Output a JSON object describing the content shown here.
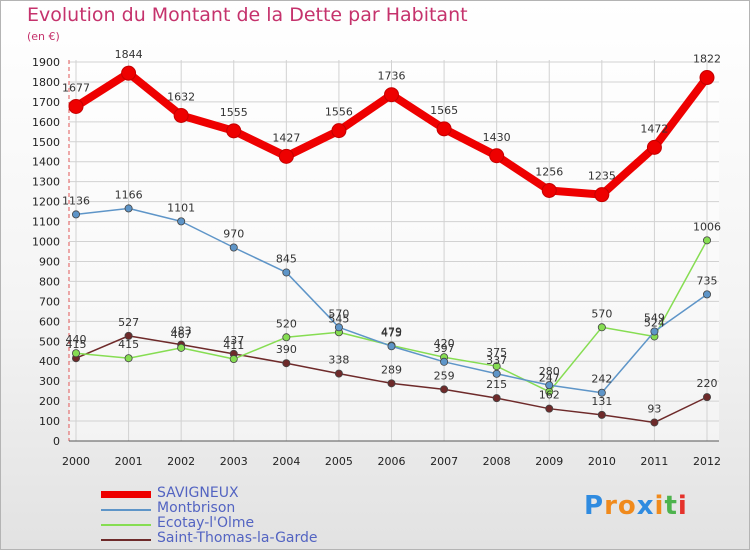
{
  "chart_data": {
    "type": "line",
    "title": "Evolution du Montant de la Dette par Habitant",
    "subtitle": "(en €)",
    "x": [
      "2000",
      "2001",
      "2002",
      "2003",
      "2004",
      "2005",
      "2006",
      "2007",
      "2008",
      "2009",
      "2010",
      "2011",
      "2012"
    ],
    "ylim": [
      0,
      1900
    ],
    "yticks": [
      0,
      100,
      200,
      300,
      400,
      500,
      600,
      700,
      800,
      900,
      1000,
      1100,
      1200,
      1300,
      1400,
      1500,
      1600,
      1700,
      1800,
      1900
    ],
    "grid": true,
    "legend_position": "bottom-left",
    "series": [
      {
        "name": "SAVIGNEUX",
        "color": "#ee0000",
        "values": [
          1677,
          1844,
          1632,
          1555,
          1427,
          1556,
          1736,
          1565,
          1430,
          1256,
          1235,
          1472,
          1822
        ],
        "labels": [
          "1677",
          "1844",
          "1632",
          "1555",
          "1427",
          "1556",
          "1736",
          "1565",
          "1430",
          "1256",
          "1235",
          "1472",
          "1822"
        ]
      },
      {
        "name": "Montbrison",
        "color": "#5e95c8",
        "values": [
          1136,
          1166,
          1101,
          970,
          845,
          570,
          475,
          397,
          337,
          280,
          242,
          549,
          735
        ],
        "labels": [
          "1136",
          "1166",
          "1101",
          "970",
          "845",
          "570",
          "475",
          "397",
          "337",
          "280",
          "242",
          "549",
          "735"
        ]
      },
      {
        "name": "Ecotay-l'Olme",
        "color": "#86dd52",
        "values": [
          440,
          415,
          467,
          411,
          520,
          545,
          479,
          420,
          375,
          247,
          570,
          524,
          1006
        ],
        "labels": [
          "440",
          "415",
          "467",
          "411",
          "520",
          "545",
          "479",
          "420",
          "375",
          "247",
          "570",
          "524",
          "1006"
        ]
      },
      {
        "name": "Saint-Thomas-la-Garde",
        "color": "#6e2a2a",
        "values": [
          415,
          527,
          483,
          437,
          390,
          338,
          289,
          259,
          215,
          162,
          131,
          93,
          220
        ],
        "labels": [
          "415",
          "527",
          "483",
          "437",
          "390",
          "338",
          "289",
          "259",
          "215",
          "162",
          "131",
          "93",
          "220"
        ]
      }
    ]
  },
  "logo": {
    "letters": [
      "P",
      "r",
      "o",
      "x",
      "i",
      "t",
      "i"
    ],
    "colors": [
      "#2f8be0",
      "#f08a1c",
      "#f08a1c",
      "#2f8be0",
      "#f08a1c",
      "#4db34d",
      "#e5322b"
    ]
  }
}
